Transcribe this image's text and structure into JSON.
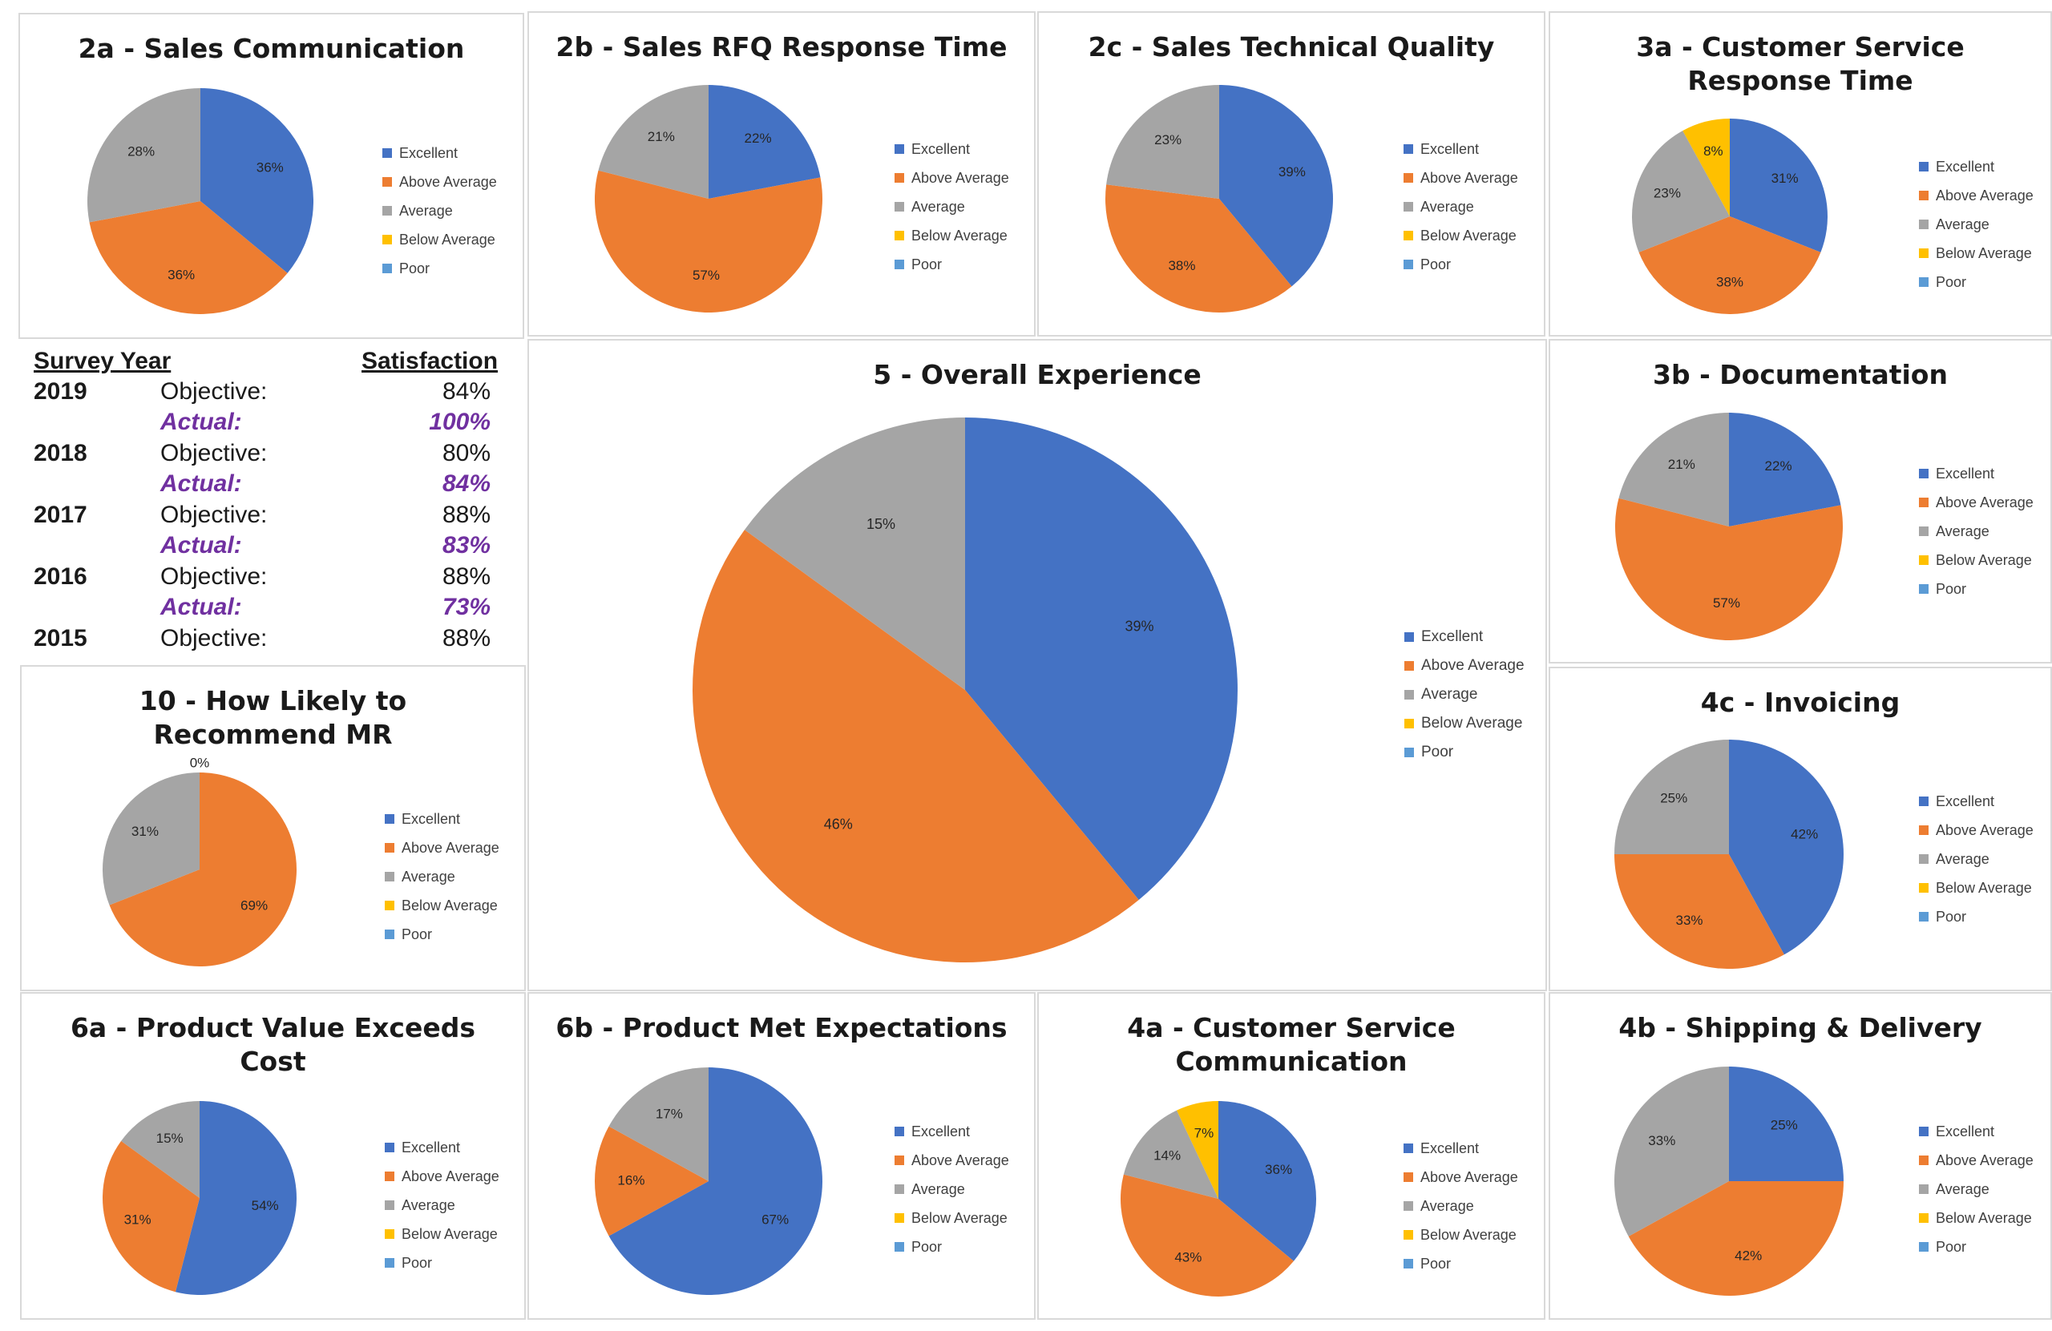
{
  "legend_labels": [
    "Excellent",
    "Above Average",
    "Average",
    "Below Average",
    "Poor"
  ],
  "colors": {
    "excellent": "#4472c4",
    "above_average": "#ed7d31",
    "average": "#a5a5a5",
    "below_average": "#ffc000",
    "poor": "#5b9bd5",
    "actual_text": "#7030a0"
  },
  "survey": {
    "header_year": "Survey Year",
    "header_satisfaction": "Satisfaction",
    "rows": [
      {
        "year": "2019",
        "label": "Objective:",
        "value": "84%",
        "kind": "objective"
      },
      {
        "year": "",
        "label": "Actual:",
        "value": "100%",
        "kind": "actual"
      },
      {
        "year": "2018",
        "label": "Objective:",
        "value": "80%",
        "kind": "objective"
      },
      {
        "year": "",
        "label": "Actual:",
        "value": "84%",
        "kind": "actual"
      },
      {
        "year": "2017",
        "label": "Objective:",
        "value": "88%",
        "kind": "objective"
      },
      {
        "year": "",
        "label": "Actual:",
        "value": "83%",
        "kind": "actual"
      },
      {
        "year": "2016",
        "label": "Objective:",
        "value": "88%",
        "kind": "objective"
      },
      {
        "year": "",
        "label": "Actual:",
        "value": "73%",
        "kind": "actual"
      },
      {
        "year": "2015",
        "label": "Objective:",
        "value": "88%",
        "kind": "objective"
      }
    ]
  },
  "chart_data": [
    {
      "id": "2a",
      "type": "pie",
      "title": "2a - Sales Communication",
      "categories": [
        "Excellent",
        "Above Average",
        "Average",
        "Below Average",
        "Poor"
      ],
      "values": [
        36,
        36,
        28,
        0,
        0
      ],
      "labels": [
        "36%",
        "36%",
        "28%",
        "",
        ""
      ],
      "legend_position": "right"
    },
    {
      "id": "2b",
      "type": "pie",
      "title": "2b - Sales RFQ Response Time",
      "categories": [
        "Excellent",
        "Above Average",
        "Average",
        "Below Average",
        "Poor"
      ],
      "values": [
        22,
        57,
        21,
        0,
        0
      ],
      "labels": [
        "22%",
        "57%",
        "21%",
        "",
        ""
      ],
      "legend_position": "right"
    },
    {
      "id": "2c",
      "type": "pie",
      "title": "2c - Sales Technical Quality",
      "categories": [
        "Excellent",
        "Above Average",
        "Average",
        "Below Average",
        "Poor"
      ],
      "values": [
        39,
        38,
        23,
        0,
        0
      ],
      "labels": [
        "39%",
        "38%",
        "23%",
        "",
        ""
      ],
      "legend_position": "right"
    },
    {
      "id": "3a",
      "type": "pie",
      "title": "3a - Customer Service\nResponse Time",
      "categories": [
        "Excellent",
        "Above Average",
        "Average",
        "Below Average",
        "Poor"
      ],
      "values": [
        31,
        38,
        23,
        8,
        0
      ],
      "labels": [
        "31%",
        "38%",
        "23%",
        "8%",
        ""
      ],
      "legend_position": "right"
    },
    {
      "id": "5",
      "type": "pie",
      "title": "5 - Overall Experience",
      "categories": [
        "Excellent",
        "Above Average",
        "Average",
        "Below Average",
        "Poor"
      ],
      "values": [
        39,
        46,
        15,
        0,
        0
      ],
      "labels": [
        "39%",
        "46%",
        "15%",
        "",
        ""
      ],
      "legend_position": "right"
    },
    {
      "id": "3b",
      "type": "pie",
      "title": "3b - Documentation",
      "categories": [
        "Excellent",
        "Above Average",
        "Average",
        "Below Average",
        "Poor"
      ],
      "values": [
        22,
        57,
        21,
        0,
        0
      ],
      "labels": [
        "22%",
        "57%",
        "21%",
        "",
        ""
      ],
      "legend_position": "right"
    },
    {
      "id": "10",
      "type": "pie",
      "title": "10 - How Likely to\nRecommend MR",
      "categories": [
        "Excellent",
        "Above Average",
        "Average",
        "Below Average",
        "Poor"
      ],
      "values": [
        0,
        69,
        31,
        0,
        0
      ],
      "labels": [
        "0%",
        "69%",
        "31%",
        "",
        ""
      ],
      "legend_position": "right"
    },
    {
      "id": "4c",
      "type": "pie",
      "title": "4c - Invoicing",
      "categories": [
        "Excellent",
        "Above Average",
        "Average",
        "Below Average",
        "Poor"
      ],
      "values": [
        42,
        33,
        25,
        0,
        0
      ],
      "labels": [
        "42%",
        "33%",
        "25%",
        "",
        ""
      ],
      "legend_position": "right"
    },
    {
      "id": "6a",
      "type": "pie",
      "title": "6a - Product Value Exceeds\nCost",
      "categories": [
        "Excellent",
        "Above Average",
        "Average",
        "Below Average",
        "Poor"
      ],
      "values": [
        54,
        31,
        15,
        0,
        0
      ],
      "labels": [
        "54%",
        "31%",
        "15%",
        "",
        ""
      ],
      "legend_position": "right"
    },
    {
      "id": "6b",
      "type": "pie",
      "title": "6b - Product Met Expectations",
      "categories": [
        "Excellent",
        "Above Average",
        "Average",
        "Below Average",
        "Poor"
      ],
      "values": [
        67,
        16,
        17,
        0,
        0
      ],
      "labels": [
        "67%",
        "16%",
        "17%",
        "",
        ""
      ],
      "legend_position": "right"
    },
    {
      "id": "4a",
      "type": "pie",
      "title": "4a - Customer Service\nCommunication",
      "categories": [
        "Excellent",
        "Above Average",
        "Average",
        "Below Average",
        "Poor"
      ],
      "values": [
        36,
        43,
        14,
        7,
        0
      ],
      "labels": [
        "36%",
        "43%",
        "14%",
        "7%",
        ""
      ],
      "legend_position": "right"
    },
    {
      "id": "4b",
      "type": "pie",
      "title": "4b - Shipping & Delivery",
      "categories": [
        "Excellent",
        "Above Average",
        "Average",
        "Below Average",
        "Poor"
      ],
      "values": [
        25,
        42,
        33,
        0,
        0
      ],
      "labels": [
        "25%",
        "42%",
        "33%",
        "",
        ""
      ],
      "legend_position": "right"
    }
  ]
}
